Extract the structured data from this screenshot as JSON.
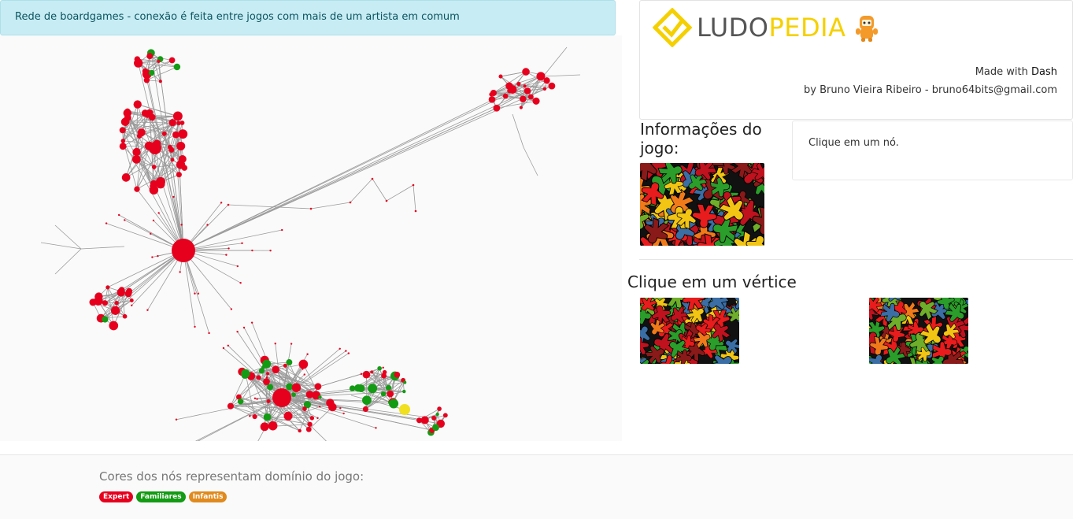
{
  "header": {
    "alert_text": "Rede de boardgames - conexão é feita entre jogos com mais de um artista em comum"
  },
  "brand": {
    "logo_part1": "LUDO",
    "logo_part2": "PEDIA",
    "made_with_prefix": "Made with",
    "made_with_tool": "Dash",
    "by_prefix": "by",
    "author": "Bruno Vieira Ribeiro",
    "separator": "-",
    "email": "bruno64bits@gmail.com"
  },
  "info_panel": {
    "title": "Informações do jogo:",
    "click_prompt": "Clique em um nó."
  },
  "vertex_panel": {
    "title": "Clique em um vértice"
  },
  "legend": {
    "title": "Cores dos nós representam domínio do jogo:",
    "badges": [
      "Expert",
      "Familiares",
      "Infantis"
    ]
  },
  "colors": {
    "expert": "#e6001e",
    "familiares": "#149b14",
    "infantis": "#e08a1e",
    "highlight": "#f0e020",
    "edge": "#9a9a9a"
  }
}
